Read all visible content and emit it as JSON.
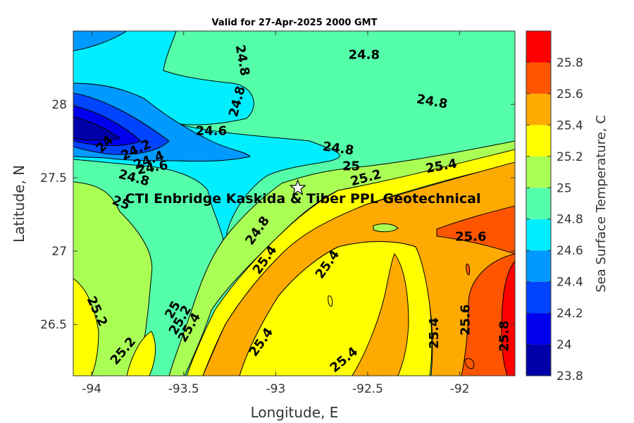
{
  "chart_data": {
    "type": "contour",
    "title": "Valid for 27-Apr-2025 2000 GMT",
    "xlabel": "Longitude, E",
    "ylabel": "Latitude, N",
    "xlim": [
      -94.1,
      -91.7
    ],
    "ylim": [
      26.15,
      28.5
    ],
    "xticks": [
      -94,
      -93.5,
      -93,
      -92.5,
      -92
    ],
    "yticks": [
      26.5,
      27,
      27.5,
      28
    ],
    "colorbar": {
      "label": "Sea Surface Temperature, C",
      "range": [
        23.8,
        26.0
      ],
      "ticks": [
        23.8,
        24,
        24.2,
        24.4,
        24.6,
        24.8,
        25,
        25.2,
        25.4,
        25.6,
        25.8
      ],
      "levels": [
        {
          "min": 23.8,
          "max": 24.0,
          "color": "#0000aa"
        },
        {
          "min": 24.0,
          "max": 24.2,
          "color": "#0000ee"
        },
        {
          "min": 24.2,
          "max": 24.4,
          "color": "#0044ff"
        },
        {
          "min": 24.4,
          "max": 24.6,
          "color": "#0099ff"
        },
        {
          "min": 24.6,
          "max": 24.8,
          "color": "#00eeff"
        },
        {
          "min": 24.8,
          "max": 25.0,
          "color": "#55ffaa"
        },
        {
          "min": 25.0,
          "max": 25.2,
          "color": "#aaff55"
        },
        {
          "min": 25.2,
          "max": 25.4,
          "color": "#ffff00"
        },
        {
          "min": 25.4,
          "max": 25.6,
          "color": "#ffaa00"
        },
        {
          "min": 25.6,
          "max": 25.8,
          "color": "#ff5500"
        },
        {
          "min": 25.8,
          "max": 26.0,
          "color": "#ff0000"
        }
      ]
    },
    "site": {
      "label": "CTI Enbridge  Kaskida & Tiber PPL Geotechnical",
      "lon": -92.88,
      "lat": 27.43
    },
    "contour_labels": [
      {
        "text": "24.8",
        "lon": -92.52,
        "lat": 28.34,
        "rot": 0
      },
      {
        "text": "24.8",
        "lon": -93.18,
        "lat": 28.3,
        "rot": 80
      },
      {
        "text": "24.8",
        "lon": -93.21,
        "lat": 28.02,
        "rot": -75
      },
      {
        "text": "24.8",
        "lon": -92.15,
        "lat": 28.02,
        "rot": 10
      },
      {
        "text": "24.6",
        "lon": -93.35,
        "lat": 27.82,
        "rot": 0
      },
      {
        "text": "24.8",
        "lon": -92.66,
        "lat": 27.7,
        "rot": 8
      },
      {
        "text": "24",
        "lon": -93.93,
        "lat": 27.73,
        "rot": -45
      },
      {
        "text": "24.2",
        "lon": -93.76,
        "lat": 27.69,
        "rot": -25
      },
      {
        "text": "24.4",
        "lon": -93.69,
        "lat": 27.62,
        "rot": -20
      },
      {
        "text": "24.6",
        "lon": -93.67,
        "lat": 27.57,
        "rot": -10
      },
      {
        "text": "24.8",
        "lon": -93.77,
        "lat": 27.5,
        "rot": 15
      },
      {
        "text": "25",
        "lon": -93.84,
        "lat": 27.33,
        "rot": 20
      },
      {
        "text": "25",
        "lon": -92.59,
        "lat": 27.58,
        "rot": 0
      },
      {
        "text": "25.2",
        "lon": -92.51,
        "lat": 27.5,
        "rot": -15
      },
      {
        "text": "25.4",
        "lon": -92.1,
        "lat": 27.58,
        "rot": -10
      },
      {
        "text": "25.6",
        "lon": -91.94,
        "lat": 27.1,
        "rot": 0
      },
      {
        "text": "24.8",
        "lon": -93.1,
        "lat": 27.14,
        "rot": -55
      },
      {
        "text": "25.4",
        "lon": -93.06,
        "lat": 26.94,
        "rot": -55
      },
      {
        "text": "25.4",
        "lon": -92.72,
        "lat": 26.91,
        "rot": -55
      },
      {
        "text": "25.2",
        "lon": -93.97,
        "lat": 26.59,
        "rot": 65
      },
      {
        "text": "25.2",
        "lon": -93.83,
        "lat": 26.32,
        "rot": -50
      },
      {
        "text": "25",
        "lon": -93.56,
        "lat": 26.6,
        "rot": -60
      },
      {
        "text": "25.2",
        "lon": -93.52,
        "lat": 26.53,
        "rot": -60
      },
      {
        "text": "25.4",
        "lon": -93.47,
        "lat": 26.48,
        "rot": -60
      },
      {
        "text": "25.4",
        "lon": -93.08,
        "lat": 26.38,
        "rot": -55
      },
      {
        "text": "25.4",
        "lon": -92.63,
        "lat": 26.26,
        "rot": -40
      },
      {
        "text": "25.4",
        "lon": -92.14,
        "lat": 26.44,
        "rot": -90
      },
      {
        "text": "25.6",
        "lon": -91.97,
        "lat": 26.53,
        "rot": -90
      },
      {
        "text": "25.8",
        "lon": -91.76,
        "lat": 26.42,
        "rot": -90
      }
    ]
  }
}
